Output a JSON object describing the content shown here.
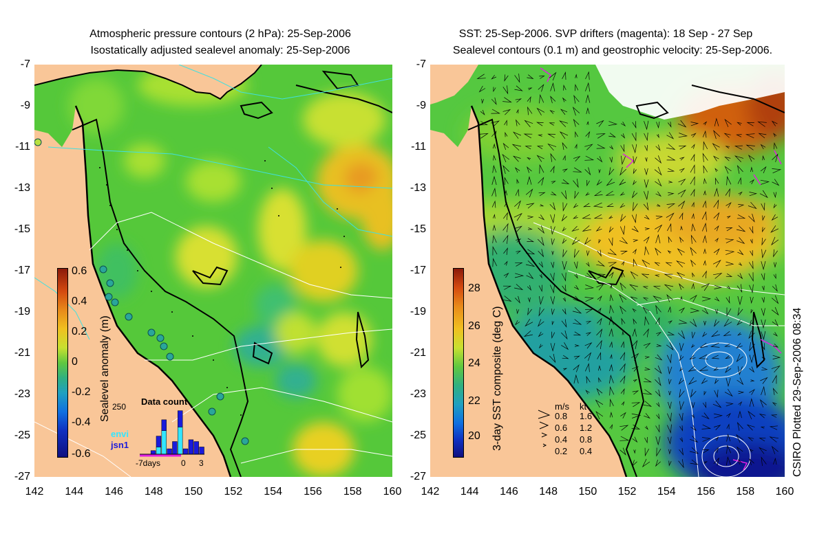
{
  "left_panel": {
    "title_line1": "Atmospheric pressure contours (2 hPa): 25-Sep-2006",
    "title_line2": "Isostatically adjusted sealevel anomaly: 25-Sep-2006",
    "colorbar": {
      "label": "Sealevel anomaly (m)",
      "ticks": [
        "0.6",
        "0.4",
        "0.2",
        "0",
        "-0.2",
        "-0.4",
        "-0.6"
      ],
      "range": [
        -0.6,
        0.6
      ]
    },
    "inset": {
      "title": "Data count",
      "ymax_label": "250",
      "series": [
        {
          "name": "envi",
          "color": "#33e6ff",
          "values": [
            0,
            0,
            0,
            40,
            130,
            0,
            0,
            150,
            0,
            0,
            0,
            0
          ]
        },
        {
          "name": "jsn1",
          "color": "#1a1adb",
          "values": [
            0,
            0,
            20,
            60,
            60,
            30,
            70,
            90,
            30,
            80,
            70,
            40
          ]
        }
      ],
      "xticks": [
        "-7days",
        "0",
        "3"
      ]
    }
  },
  "right_panel": {
    "title_line1": "SST: 25-Sep-2006. SVP drifters (magenta): 18 Sep - 27 Sep",
    "title_line2": "Sealevel contours (0.1 m) and geostrophic velocity: 25-Sep-2006.",
    "colorbar": {
      "label": "3-day SST composite (deg C)",
      "ticks": [
        "28",
        "26",
        "24",
        "22",
        "20"
      ],
      "range": [
        19.5,
        29
      ]
    },
    "velocity_legend": {
      "header_ms": "m/s",
      "header_kt": "kt",
      "rows": [
        {
          "ms": "0.8",
          "kt": "1.6"
        },
        {
          "ms": "0.6",
          "kt": "1.2"
        },
        {
          "ms": "0.4",
          "kt": "0.8"
        },
        {
          "ms": "0.2",
          "kt": "0.4"
        }
      ]
    }
  },
  "axes": {
    "y_ticks": [
      "-7",
      "-9",
      "-11",
      "-13",
      "-15",
      "-17",
      "-19",
      "-21",
      "-23",
      "-25",
      "-27"
    ],
    "x_ticks": [
      "142",
      "144",
      "146",
      "148",
      "150",
      "152",
      "154",
      "156",
      "158",
      "160"
    ],
    "lon_range": [
      142,
      160
    ],
    "lat_range": [
      -27,
      -7
    ]
  },
  "footer": "CSIRO Plotted 29-Sep-2006 08:34",
  "colors": {
    "land": "#f9c698",
    "coast": "#000000",
    "pressure_contour": "#40e0e0",
    "sealevel_contour": "#ffffff",
    "drifter": "#e020e0"
  }
}
